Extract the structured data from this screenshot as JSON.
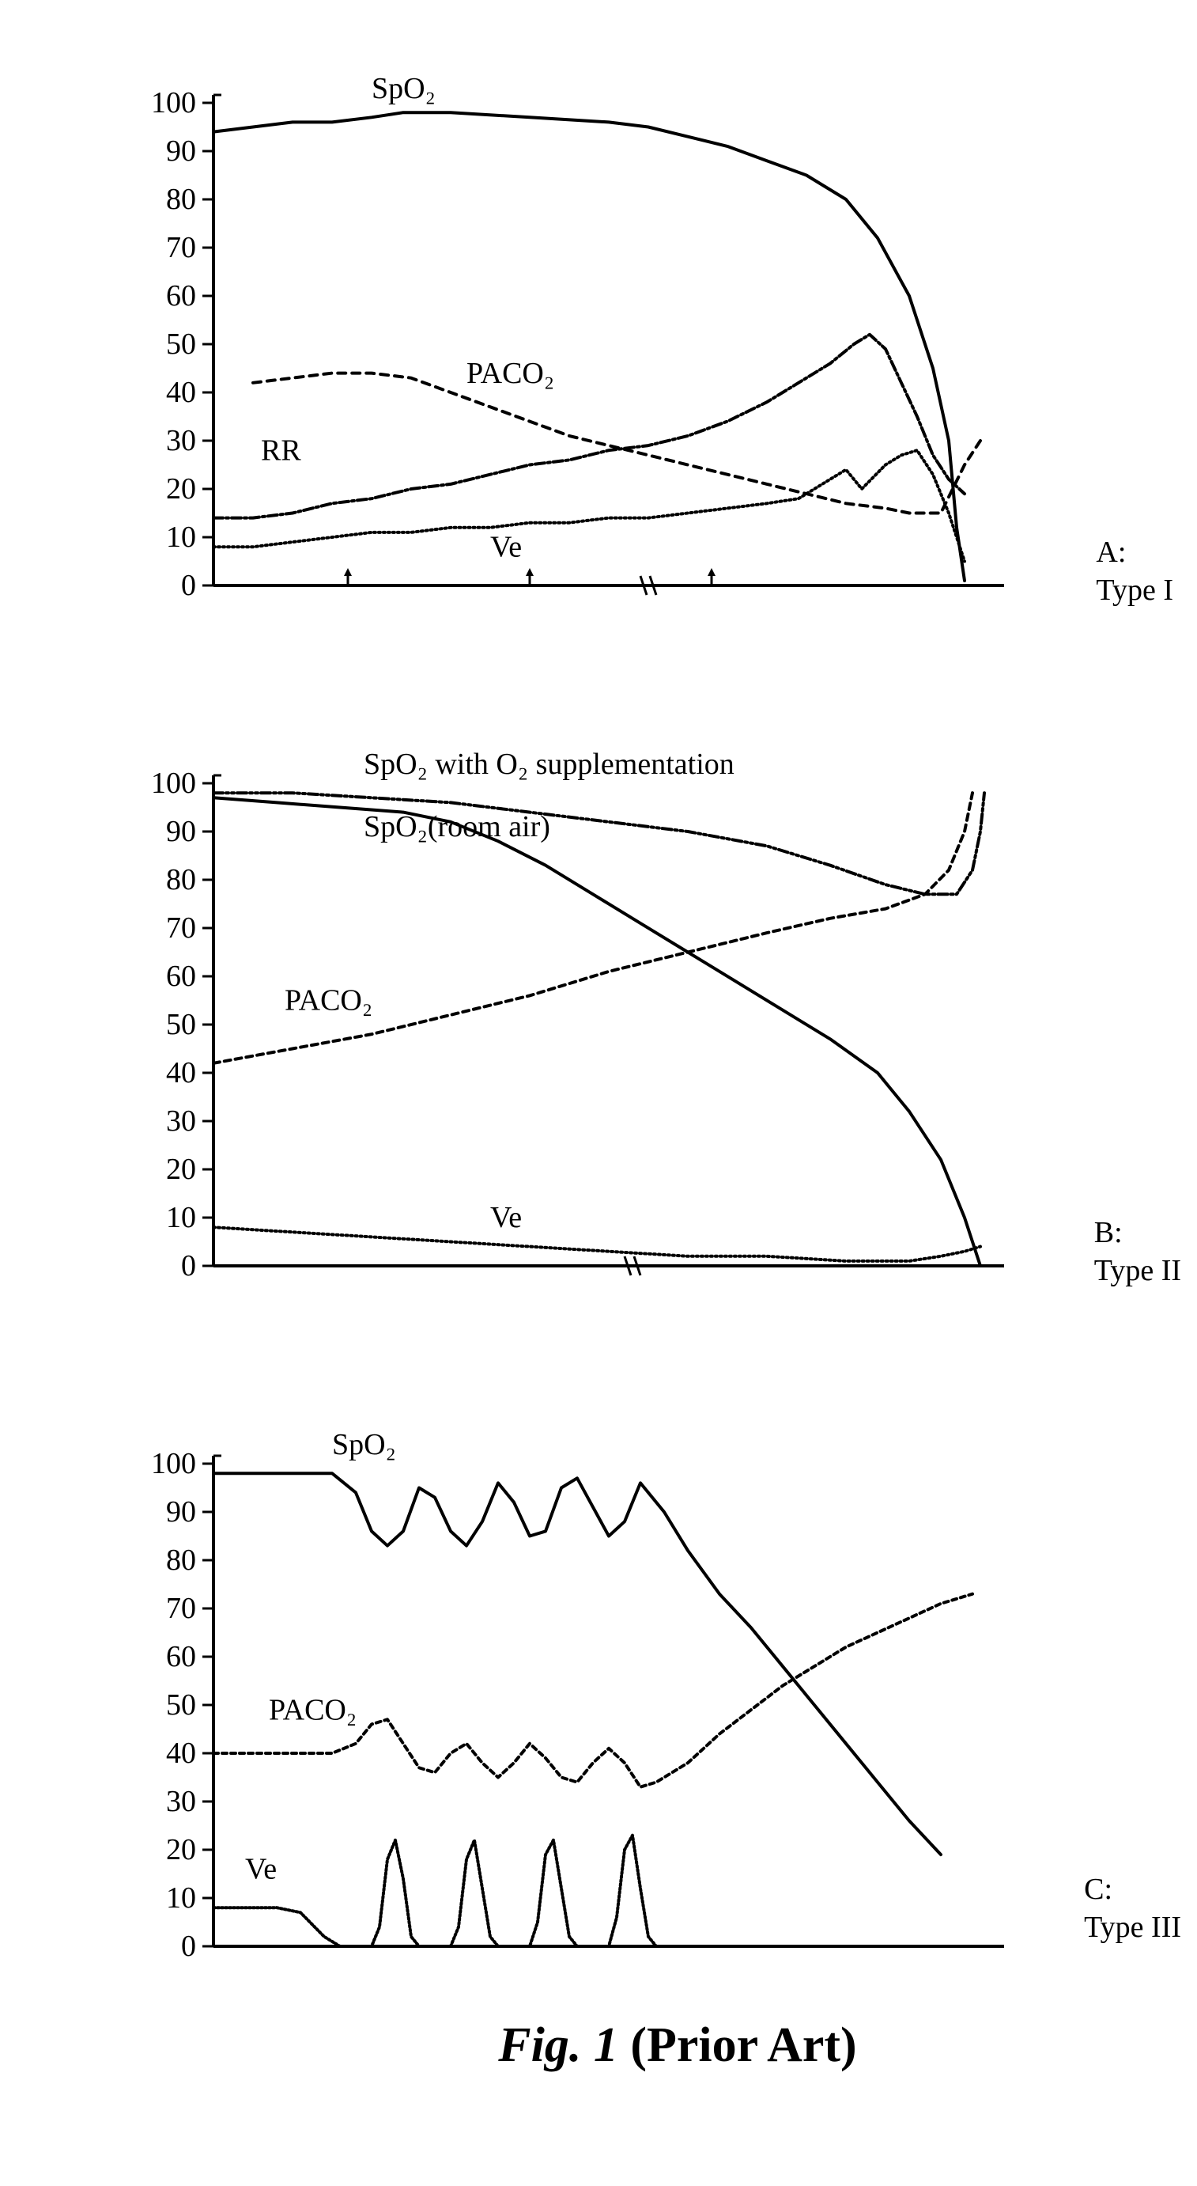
{
  "figure": {
    "caption_main": "Fig. 1",
    "caption_paren": "(Prior Art)",
    "axis_color": "#000000",
    "line_color": "#000000",
    "background": "#ffffff",
    "tick_fontsize": 38,
    "label_fontsize": 38,
    "series_label_fontsize": 38,
    "line_width": 4
  },
  "panelA": {
    "label_line1": "A:",
    "label_line2": "Type I",
    "ylim": [
      0,
      100
    ],
    "yticks": [
      0,
      10,
      20,
      30,
      40,
      50,
      60,
      70,
      80,
      90,
      100
    ],
    "xrange": [
      0,
      100
    ],
    "break_at": 55,
    "series": {
      "spo2": {
        "label": "SpO₂",
        "label_pos": [
          20,
          101
        ],
        "dash": "none",
        "points": [
          [
            0,
            94
          ],
          [
            5,
            95
          ],
          [
            10,
            96
          ],
          [
            15,
            96
          ],
          [
            20,
            97
          ],
          [
            24,
            98
          ],
          [
            30,
            98
          ],
          [
            40,
            97
          ],
          [
            50,
            96
          ],
          [
            55,
            95
          ],
          [
            60,
            93
          ],
          [
            65,
            91
          ],
          [
            70,
            88
          ],
          [
            75,
            85
          ],
          [
            80,
            80
          ],
          [
            84,
            72
          ],
          [
            88,
            60
          ],
          [
            91,
            45
          ],
          [
            93,
            30
          ],
          [
            94,
            12
          ],
          [
            95,
            1
          ]
        ]
      },
      "paco2": {
        "label": "PACO₂",
        "label_pos": [
          32,
          42
        ],
        "dash": "10,8",
        "points": [
          [
            5,
            42
          ],
          [
            10,
            43
          ],
          [
            15,
            44
          ],
          [
            20,
            44
          ],
          [
            25,
            43
          ],
          [
            30,
            40
          ],
          [
            35,
            37
          ],
          [
            40,
            34
          ],
          [
            45,
            31
          ],
          [
            50,
            29
          ],
          [
            55,
            27
          ],
          [
            60,
            25
          ],
          [
            65,
            23
          ],
          [
            70,
            21
          ],
          [
            75,
            19
          ],
          [
            80,
            17
          ],
          [
            85,
            16
          ],
          [
            88,
            15
          ],
          [
            92,
            15
          ],
          [
            95,
            25
          ],
          [
            97,
            30
          ]
        ]
      },
      "rr": {
        "label": "RR",
        "label_pos": [
          6,
          26
        ],
        "dash": "12,4,3,4",
        "points": [
          [
            0,
            14
          ],
          [
            5,
            14
          ],
          [
            10,
            15
          ],
          [
            15,
            17
          ],
          [
            20,
            18
          ],
          [
            25,
            20
          ],
          [
            30,
            21
          ],
          [
            35,
            23
          ],
          [
            40,
            25
          ],
          [
            45,
            26
          ],
          [
            50,
            28
          ],
          [
            55,
            29
          ],
          [
            60,
            31
          ],
          [
            65,
            34
          ],
          [
            70,
            38
          ],
          [
            74,
            42
          ],
          [
            78,
            46
          ],
          [
            81,
            50
          ],
          [
            83,
            52
          ],
          [
            85,
            49
          ],
          [
            87,
            42
          ],
          [
            89,
            35
          ],
          [
            91,
            27
          ],
          [
            93,
            22
          ],
          [
            95,
            19
          ]
        ]
      },
      "ve": {
        "label": "Ve",
        "label_pos": [
          35,
          6
        ],
        "dash": "2,4",
        "points": [
          [
            0,
            8
          ],
          [
            5,
            8
          ],
          [
            10,
            9
          ],
          [
            15,
            10
          ],
          [
            20,
            11
          ],
          [
            25,
            11
          ],
          [
            30,
            12
          ],
          [
            35,
            12
          ],
          [
            40,
            13
          ],
          [
            45,
            13
          ],
          [
            50,
            14
          ],
          [
            55,
            14
          ],
          [
            60,
            15
          ],
          [
            65,
            16
          ],
          [
            70,
            17
          ],
          [
            74,
            18
          ],
          [
            78,
            22
          ],
          [
            80,
            24
          ],
          [
            82,
            20
          ],
          [
            85,
            25
          ],
          [
            87,
            27
          ],
          [
            89,
            28
          ],
          [
            91,
            23
          ],
          [
            93,
            15
          ],
          [
            95,
            5
          ]
        ]
      }
    },
    "x_arrows": [
      17,
      40,
      63
    ]
  },
  "panelB": {
    "label_line1": "B:",
    "label_line2": "Type II",
    "ylim": [
      0,
      100
    ],
    "yticks": [
      0,
      10,
      20,
      30,
      40,
      50,
      60,
      70,
      80,
      90,
      100
    ],
    "xrange": [
      0,
      100
    ],
    "break_at": 53,
    "series": {
      "spo2_supp": {
        "label": "SpO₂ with O₂ supplementation",
        "label_pos": [
          19,
          102
        ],
        "dash": "12,4,3,4,3,4",
        "points": [
          [
            0,
            98
          ],
          [
            10,
            98
          ],
          [
            20,
            97
          ],
          [
            30,
            96
          ],
          [
            40,
            94
          ],
          [
            50,
            92
          ],
          [
            60,
            90
          ],
          [
            70,
            87
          ],
          [
            78,
            83
          ],
          [
            85,
            79
          ],
          [
            90,
            77
          ],
          [
            94,
            77
          ],
          [
            96,
            82
          ],
          [
            97,
            90
          ],
          [
            97.5,
            98
          ]
        ]
      },
      "spo2_room": {
        "label": "SpO₂(room air)",
        "label_pos": [
          19,
          89
        ],
        "dash": "none",
        "points": [
          [
            0,
            97
          ],
          [
            8,
            96
          ],
          [
            16,
            95
          ],
          [
            24,
            94
          ],
          [
            30,
            92
          ],
          [
            36,
            88
          ],
          [
            42,
            83
          ],
          [
            48,
            77
          ],
          [
            54,
            71
          ],
          [
            60,
            65
          ],
          [
            66,
            59
          ],
          [
            72,
            53
          ],
          [
            78,
            47
          ],
          [
            84,
            40
          ],
          [
            88,
            32
          ],
          [
            92,
            22
          ],
          [
            95,
            10
          ],
          [
            97,
            0
          ]
        ]
      },
      "paco2": {
        "label": "PACO₂",
        "label_pos": [
          9,
          53
        ],
        "dash": "8,6",
        "points": [
          [
            0,
            42
          ],
          [
            10,
            45
          ],
          [
            20,
            48
          ],
          [
            30,
            52
          ],
          [
            40,
            56
          ],
          [
            50,
            61
          ],
          [
            60,
            65
          ],
          [
            70,
            69
          ],
          [
            78,
            72
          ],
          [
            85,
            74
          ],
          [
            90,
            77
          ],
          [
            93,
            82
          ],
          [
            95,
            90
          ],
          [
            96,
            98
          ]
        ]
      },
      "ve": {
        "label": "Ve",
        "label_pos": [
          35,
          8
        ],
        "dash": "2,4",
        "points": [
          [
            0,
            8
          ],
          [
            10,
            7
          ],
          [
            20,
            6
          ],
          [
            30,
            5
          ],
          [
            40,
            4
          ],
          [
            50,
            3
          ],
          [
            60,
            2
          ],
          [
            70,
            2
          ],
          [
            80,
            1
          ],
          [
            88,
            1
          ],
          [
            92,
            2
          ],
          [
            95,
            3
          ],
          [
            97,
            4
          ]
        ]
      }
    }
  },
  "panelC": {
    "label_line1": "C:",
    "label_line2": "Type III",
    "ylim": [
      0,
      100
    ],
    "yticks": [
      0,
      10,
      20,
      30,
      40,
      50,
      60,
      70,
      80,
      90,
      100
    ],
    "xrange": [
      0,
      100
    ],
    "series": {
      "spo2": {
        "label": "SpO₂",
        "label_pos": [
          15,
          102
        ],
        "dash": "none",
        "points": [
          [
            0,
            98
          ],
          [
            10,
            98
          ],
          [
            15,
            98
          ],
          [
            18,
            94
          ],
          [
            20,
            86
          ],
          [
            22,
            83
          ],
          [
            24,
            86
          ],
          [
            26,
            95
          ],
          [
            28,
            93
          ],
          [
            30,
            86
          ],
          [
            32,
            83
          ],
          [
            34,
            88
          ],
          [
            36,
            96
          ],
          [
            38,
            92
          ],
          [
            40,
            85
          ],
          [
            42,
            86
          ],
          [
            44,
            95
          ],
          [
            46,
            97
          ],
          [
            48,
            91
          ],
          [
            50,
            85
          ],
          [
            52,
            88
          ],
          [
            54,
            96
          ],
          [
            57,
            90
          ],
          [
            60,
            82
          ],
          [
            64,
            73
          ],
          [
            68,
            66
          ],
          [
            72,
            58
          ],
          [
            76,
            50
          ],
          [
            80,
            42
          ],
          [
            84,
            34
          ],
          [
            88,
            26
          ],
          [
            92,
            19
          ]
        ]
      },
      "paco2": {
        "label": "PACO₂",
        "label_pos": [
          7,
          47
        ],
        "dash": "6,5",
        "points": [
          [
            0,
            40
          ],
          [
            10,
            40
          ],
          [
            15,
            40
          ],
          [
            18,
            42
          ],
          [
            20,
            46
          ],
          [
            22,
            47
          ],
          [
            24,
            42
          ],
          [
            26,
            37
          ],
          [
            28,
            36
          ],
          [
            30,
            40
          ],
          [
            32,
            42
          ],
          [
            34,
            38
          ],
          [
            36,
            35
          ],
          [
            38,
            38
          ],
          [
            40,
            42
          ],
          [
            42,
            39
          ],
          [
            44,
            35
          ],
          [
            46,
            34
          ],
          [
            48,
            38
          ],
          [
            50,
            41
          ],
          [
            52,
            38
          ],
          [
            54,
            33
          ],
          [
            56,
            34
          ],
          [
            60,
            38
          ],
          [
            64,
            44
          ],
          [
            68,
            49
          ],
          [
            72,
            54
          ],
          [
            76,
            58
          ],
          [
            80,
            62
          ],
          [
            84,
            65
          ],
          [
            88,
            68
          ],
          [
            92,
            71
          ],
          [
            96,
            73
          ]
        ]
      },
      "ve": {
        "label": "Ve",
        "label_pos": [
          4,
          14
        ],
        "dash": "2,3",
        "points": [
          [
            0,
            8
          ],
          [
            8,
            8
          ],
          [
            11,
            7
          ],
          [
            14,
            2
          ],
          [
            16,
            0
          ],
          [
            18,
            0
          ],
          [
            20,
            0
          ],
          [
            21,
            4
          ],
          [
            22,
            18
          ],
          [
            23,
            22
          ],
          [
            24,
            14
          ],
          [
            25,
            2
          ],
          [
            26,
            0
          ],
          [
            28,
            0
          ],
          [
            30,
            0
          ],
          [
            31,
            4
          ],
          [
            32,
            18
          ],
          [
            33,
            22
          ],
          [
            34,
            12
          ],
          [
            35,
            2
          ],
          [
            36,
            0
          ],
          [
            38,
            0
          ],
          [
            40,
            0
          ],
          [
            41,
            5
          ],
          [
            42,
            19
          ],
          [
            43,
            22
          ],
          [
            44,
            12
          ],
          [
            45,
            2
          ],
          [
            46,
            0
          ],
          [
            48,
            0
          ],
          [
            50,
            0
          ],
          [
            51,
            6
          ],
          [
            52,
            20
          ],
          [
            53,
            23
          ],
          [
            54,
            12
          ],
          [
            55,
            2
          ],
          [
            56,
            0
          ],
          [
            60,
            0
          ],
          [
            70,
            0
          ],
          [
            80,
            0
          ],
          [
            90,
            0
          ],
          [
            96,
            0
          ]
        ]
      }
    }
  }
}
